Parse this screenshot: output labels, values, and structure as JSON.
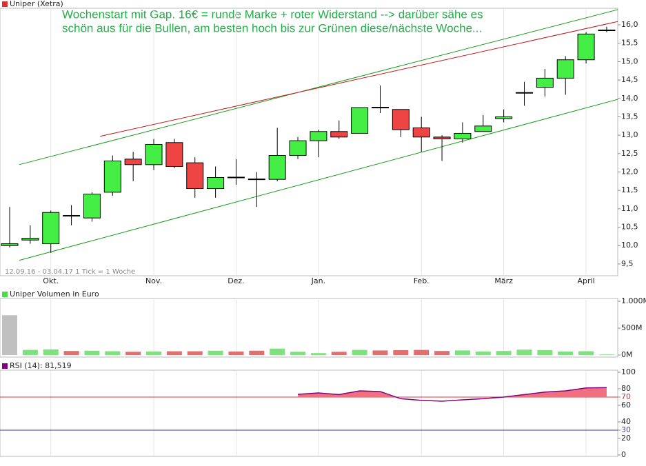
{
  "chart_data": [
    {
      "type": "candlestick",
      "label": "Uniper (Xetra)",
      "legend_color": "#e03030",
      "annotation": [
        "Wochenstart mit Gap. 16€ = runde Marke + roter Widerstand --> darüber sähe es",
        "schön aus für die Bullen, am besten hoch bis zur Grünen diese/nächste Woche..."
      ],
      "range_text": "12.09.16 - 03.04.17   1 Tick = 1 Woche",
      "categories": [
        null,
        null,
        "Okt.",
        null,
        null,
        null,
        null,
        "Nov.",
        null,
        null,
        null,
        "Dez.",
        null,
        null,
        null,
        "Jan.",
        null,
        null,
        null,
        null,
        "Feb.",
        null,
        null,
        null,
        "März",
        null,
        null,
        null,
        "April",
        null
      ],
      "open": [
        10.0,
        10.15,
        10.05,
        10.8,
        10.75,
        11.45,
        12.35,
        12.2,
        12.8,
        12.25,
        11.55,
        11.85,
        11.8,
        11.8,
        12.45,
        12.85,
        13.1,
        13.05,
        13.75,
        13.7,
        13.2,
        12.95,
        12.9,
        13.1,
        13.45,
        14.15,
        14.3,
        14.55,
        15.05,
        15.85
      ],
      "high": [
        11.05,
        10.55,
        10.95,
        11.1,
        11.45,
        12.45,
        12.55,
        12.9,
        12.9,
        12.4,
        12.15,
        12.35,
        12.0,
        13.2,
        12.95,
        13.15,
        13.4,
        13.75,
        14.35,
        13.7,
        13.5,
        13.0,
        13.35,
        13.55,
        13.7,
        14.45,
        14.8,
        15.15,
        15.8,
        15.95
      ],
      "low": [
        9.95,
        10.05,
        9.8,
        10.55,
        10.65,
        11.35,
        11.75,
        12.05,
        12.1,
        11.3,
        11.3,
        11.65,
        11.05,
        11.75,
        12.35,
        12.4,
        12.9,
        13.05,
        13.6,
        12.95,
        12.55,
        12.3,
        12.8,
        13.1,
        13.35,
        13.8,
        14.05,
        14.1,
        14.95,
        15.8
      ],
      "close": [
        10.05,
        10.2,
        10.9,
        10.82,
        11.4,
        12.3,
        12.2,
        12.75,
        12.15,
        11.55,
        11.85,
        11.86,
        11.81,
        12.45,
        12.85,
        13.1,
        12.95,
        13.75,
        13.76,
        13.15,
        12.95,
        12.9,
        13.05,
        13.25,
        13.5,
        14.16,
        14.55,
        15.05,
        15.75,
        15.86
      ],
      "up_color": "#44ee44",
      "down_color": "#ee4444",
      "ylim": [
        9.18,
        16.45
      ],
      "yticks": [
        {
          "value": 9.5,
          "label": "9,5"
        },
        {
          "value": 10,
          "label": "10,0"
        },
        {
          "value": 10.5,
          "label": "10,5"
        },
        {
          "value": 11,
          "label": "11,0"
        },
        {
          "value": 11.5,
          "label": "11,5"
        },
        {
          "value": 12,
          "label": "12,0"
        },
        {
          "value": 12.5,
          "label": "12,5"
        },
        {
          "value": 13,
          "label": "13,0"
        },
        {
          "value": 13.5,
          "label": "13,5"
        },
        {
          "value": 14,
          "label": "14,0"
        },
        {
          "value": 14.5,
          "label": "14,5"
        },
        {
          "value": 15,
          "label": "15,0"
        },
        {
          "value": 15.5,
          "label": "15,5"
        },
        {
          "value": 16,
          "label": "16,0"
        }
      ],
      "trendlines": [
        {
          "color": "#1a9a1a",
          "points": [
            [
              0.47,
              12.2
            ],
            [
              30.68,
              16.58
            ]
          ]
        },
        {
          "color": "#c01818",
          "points": [
            [
              4.39,
              12.97
            ],
            [
              30.91,
              16.26
            ]
          ]
        },
        {
          "color": "#1a9a1a",
          "points": [
            [
              0.47,
              9.6
            ],
            [
              30.91,
              14.18
            ]
          ]
        }
      ]
    },
    {
      "type": "bar",
      "label": "Uniper Volumen in Euro",
      "legend_color": "#44dd44",
      "values": [
        740,
        95,
        105,
        75,
        80,
        70,
        60,
        65,
        70,
        70,
        80,
        65,
        80,
        120,
        60,
        35,
        60,
        95,
        85,
        90,
        95,
        75,
        85,
        65,
        75,
        100,
        90,
        65,
        70,
        10
      ],
      "colors": [
        "#c0c0c0",
        "#7ee07e",
        "#7ee07e",
        "#e07070",
        "#7ee07e",
        "#7ee07e",
        "#e07070",
        "#7ee07e",
        "#e07070",
        "#e07070",
        "#7ee07e",
        "#e07070",
        "#e07070",
        "#7ee07e",
        "#7ee07e",
        "#7ee07e",
        "#e07070",
        "#7ee07e",
        "#e07070",
        "#e07070",
        "#e07070",
        "#e07070",
        "#7ee07e",
        "#7ee07e",
        "#7ee07e",
        "#7ee07e",
        "#7ee07e",
        "#7ee07e",
        "#7ee07e",
        "#7ee07e"
      ],
      "ylim": [
        0,
        1000
      ],
      "yticks": [
        {
          "value": 1000,
          "label": "1.000M"
        },
        {
          "value": 500,
          "label": "500M"
        },
        {
          "value": 0,
          "label": "0M"
        }
      ]
    },
    {
      "type": "line",
      "label": "RSI (14): 81,519",
      "legend_color": "#800080",
      "color": "#800080",
      "fill_color": "#f07080",
      "values": [
        null,
        null,
        null,
        null,
        null,
        null,
        null,
        null,
        null,
        null,
        null,
        null,
        null,
        null,
        73.3,
        75,
        73,
        77.5,
        76.7,
        68,
        66,
        65,
        66.7,
        68,
        70,
        73,
        76,
        77.5,
        81,
        81.5
      ],
      "ylim": [
        0,
        100
      ],
      "yticks": [
        100,
        80,
        70,
        60,
        40,
        30,
        20,
        0
      ],
      "ref_lines": [
        {
          "value": 70,
          "color": "#e03030"
        },
        {
          "value": 30,
          "color": "#4040a0"
        }
      ]
    }
  ]
}
